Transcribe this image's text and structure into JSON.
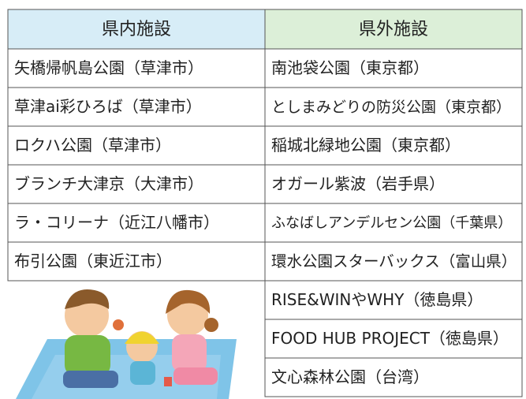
{
  "header": {
    "left": "県内施設",
    "right": "県外施設"
  },
  "left_rows": [
    "矢橋帰帆島公園（草津市）",
    "草津ai彩ひろば（草津市）",
    "ロクハ公園（草津市）",
    "ブランチ大津京（大津市）",
    "ラ・コリーナ（近江八幡市）",
    "布引公園（東近江市）"
  ],
  "right_rows": [
    "南池袋公園（東京都）",
    "としまみどりの防災公園（東京都）",
    "稲城北緑地公園（東京都）",
    "オガール紫波（岩手県）",
    "ふなばしアンデルセン公園（千葉県）",
    "環水公園スターバックス（富山県）",
    "RISE&WINやWHY（徳島県）",
    "FOOD HUB PROJECT（徳島県）",
    "文心森林公園（台湾）"
  ]
}
